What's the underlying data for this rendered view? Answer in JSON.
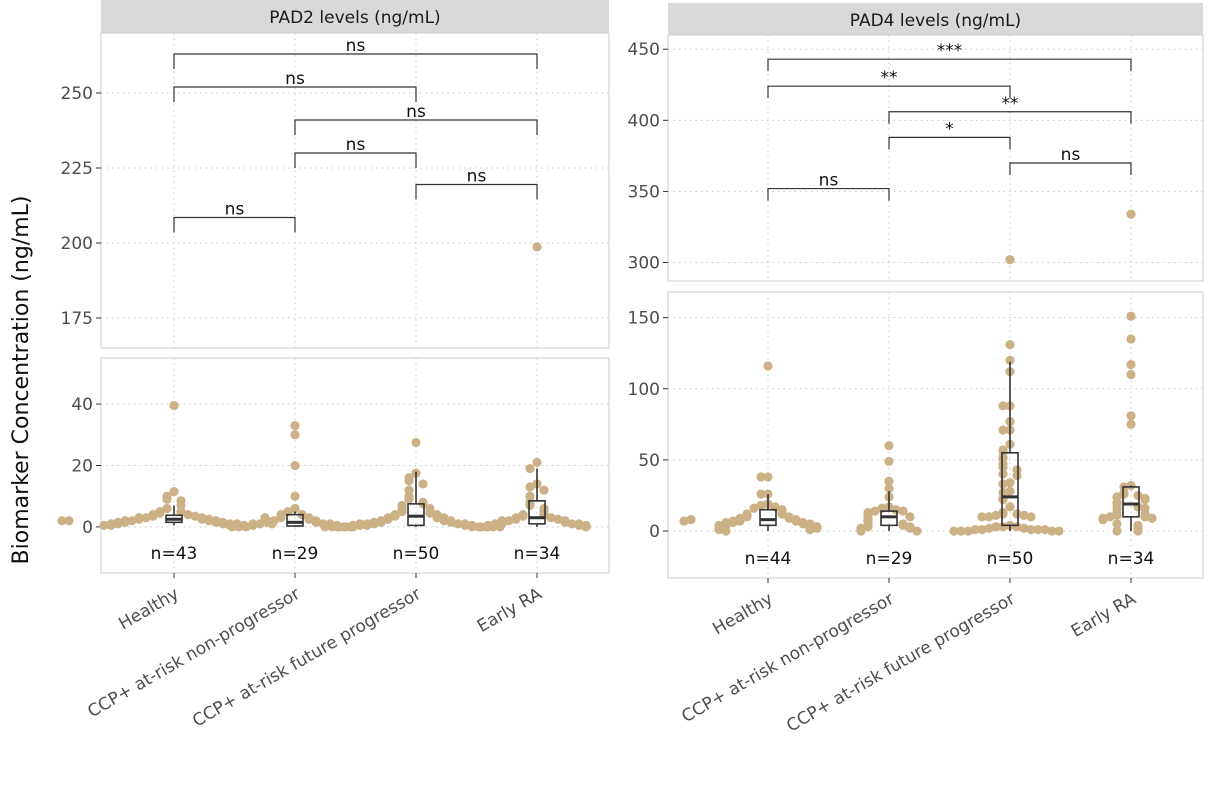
{
  "chart_data": [
    {
      "type": "box+dot (broken y-axis)",
      "title": "PAD2 levels (ng/mL)",
      "ylabel": "Biomarker Concentration (ng/mL)",
      "categories": [
        "Healthy",
        "CCP+ at-risk non-progressor",
        "CCP+ at-risk future progressor",
        "Early RA"
      ],
      "n_labels": [
        "n=43",
        "n=29",
        "n=50",
        "n=34"
      ],
      "upper_ylim": [
        165,
        270
      ],
      "upper_yticks": [
        175,
        200,
        225,
        250
      ],
      "lower_ylim": [
        -15,
        55
      ],
      "lower_yticks": [
        0,
        20,
        40
      ],
      "grid": true,
      "boxes": [
        {
          "q1": 1.5,
          "median": 2.5,
          "q3": 3.8,
          "whisker_low": 0.5,
          "whisker_high": 7
        },
        {
          "q1": 0.3,
          "median": 1.5,
          "q3": 4,
          "whisker_low": 0,
          "whisker_high": 5
        },
        {
          "q1": 0.5,
          "median": 3.5,
          "q3": 7.5,
          "whisker_low": 0,
          "whisker_high": 18
        },
        {
          "q1": 1,
          "median": 3,
          "q3": 8.5,
          "whisker_low": 0,
          "whisker_high": 19
        }
      ],
      "points": [
        [
          39.5,
          11.5,
          10,
          9,
          8.5,
          7,
          6,
          5,
          5,
          4.5,
          4,
          4,
          3.5,
          3.5,
          3,
          3,
          3,
          2.5,
          2.5,
          2.5,
          2,
          2,
          2,
          2,
          1.5,
          1.5,
          1.5,
          1.5,
          1,
          1,
          1,
          1,
          1,
          0.5,
          0.5,
          0.5,
          0.5,
          0.5,
          3,
          2,
          1.5,
          2,
          1
        ],
        [
          33,
          30,
          20,
          10,
          6,
          5,
          4,
          4,
          3,
          3,
          2.5,
          2,
          2,
          2,
          1.5,
          1.5,
          1,
          1,
          1,
          1,
          0.5,
          0.5,
          0.5,
          0,
          0,
          0,
          0,
          0,
          0
        ],
        [
          27.5,
          17.5,
          16,
          15,
          14,
          12,
          10,
          9,
          8,
          7.5,
          7,
          6,
          6,
          5,
          5,
          4.5,
          4,
          4,
          3.5,
          3,
          3,
          3,
          2.5,
          2.5,
          2,
          2,
          2,
          1.5,
          1.5,
          1.5,
          1,
          1,
          1,
          1,
          1,
          0.5,
          0.5,
          0.5,
          0.5,
          0.5,
          0,
          0,
          0,
          0,
          0,
          0,
          0,
          0,
          0,
          0
        ],
        [
          198.7,
          21,
          19,
          14,
          13,
          12,
          10,
          8,
          7,
          6,
          5,
          4,
          4,
          3.5,
          3,
          3,
          2.5,
          2.5,
          2,
          2,
          2,
          1.5,
          1.5,
          1,
          1,
          1,
          1,
          0.5,
          0.5,
          0.5,
          0.5,
          0,
          0,
          0
        ]
      ],
      "comparisons": [
        {
          "from": 0,
          "to": 3,
          "y": 263,
          "label": "ns"
        },
        {
          "from": 0,
          "to": 2,
          "y": 252,
          "label": "ns"
        },
        {
          "from": 1,
          "to": 3,
          "y": 241,
          "label": "ns"
        },
        {
          "from": 1,
          "to": 2,
          "y": 230,
          "label": "ns"
        },
        {
          "from": 2,
          "to": 3,
          "y": 219.5,
          "label": "ns"
        },
        {
          "from": 0,
          "to": 1,
          "y": 208.5,
          "label": "ns"
        }
      ]
    },
    {
      "type": "box+dot (broken y-axis)",
      "title": "PAD4 levels (ng/mL)",
      "categories": [
        "Healthy",
        "CCP+ at-risk non-progressor",
        "CCP+ at-risk future progressor",
        "Early RA"
      ],
      "n_labels": [
        "n=44",
        "n=29",
        "n=50",
        "n=34"
      ],
      "upper_ylim": [
        287,
        460
      ],
      "upper_yticks": [
        300,
        350,
        400,
        450
      ],
      "lower_ylim": [
        -33,
        168
      ],
      "lower_yticks": [
        0,
        50,
        100,
        150
      ],
      "grid": true,
      "boxes": [
        {
          "q1": 4,
          "median": 8,
          "q3": 15,
          "whisker_low": 0,
          "whisker_high": 26
        },
        {
          "q1": 4,
          "median": 10,
          "q3": 14,
          "whisker_low": 0,
          "whisker_high": 28
        },
        {
          "q1": 4,
          "median": 24,
          "q3": 55,
          "whisker_low": 0,
          "whisker_high": 119
        },
        {
          "q1": 10,
          "median": 19,
          "q3": 31,
          "whisker_low": 0,
          "whisker_high": 32
        }
      ],
      "points": [
        [
          116,
          38,
          38,
          26,
          26,
          19,
          18,
          17,
          16,
          15,
          14,
          13,
          12,
          12,
          11,
          10,
          10,
          9,
          9,
          8,
          8,
          7,
          7,
          7,
          6,
          6,
          6,
          5,
          5,
          5,
          4,
          4,
          4,
          3,
          3,
          3,
          2,
          2,
          2,
          1,
          1,
          0,
          8,
          7
        ],
        [
          60,
          49,
          35,
          30,
          24,
          17,
          16,
          15,
          14,
          14,
          13,
          12,
          11,
          10,
          10,
          9,
          8,
          7,
          6,
          5,
          4,
          4,
          3,
          3,
          2,
          2,
          1,
          0,
          0
        ],
        [
          302,
          131,
          120,
          112,
          88,
          88,
          77,
          71,
          71,
          61,
          57,
          56,
          52,
          51,
          47,
          45,
          43,
          40,
          39,
          34,
          33,
          28,
          27,
          23,
          22,
          17,
          13,
          12,
          12,
          11,
          11,
          10,
          10,
          10,
          4,
          3,
          3,
          3,
          2,
          2,
          1,
          1,
          1,
          1,
          1,
          0,
          0,
          0,
          0,
          0
        ],
        [
          334,
          151,
          135,
          117,
          110,
          81,
          75,
          32,
          31,
          27,
          26,
          25,
          24,
          23,
          22,
          20,
          19,
          17,
          16,
          16,
          13,
          12,
          12,
          11,
          10,
          10,
          9,
          9,
          8,
          5,
          4,
          2,
          0,
          0
        ]
      ],
      "comparisons": [
        {
          "from": 0,
          "to": 3,
          "y": 443,
          "label": "***"
        },
        {
          "from": 0,
          "to": 2,
          "y": 424,
          "label": "**"
        },
        {
          "from": 1,
          "to": 3,
          "y": 406,
          "label": "**"
        },
        {
          "from": 1,
          "to": 2,
          "y": 388,
          "label": "*"
        },
        {
          "from": 2,
          "to": 3,
          "y": 370,
          "label": "ns"
        },
        {
          "from": 0,
          "to": 1,
          "y": 352,
          "label": "ns"
        }
      ]
    }
  ],
  "colors": {
    "point": "#cdb186",
    "strip": "#d9d9d9",
    "border": "#cccccc",
    "grid": "#c8c8c8",
    "box": "#333333"
  }
}
